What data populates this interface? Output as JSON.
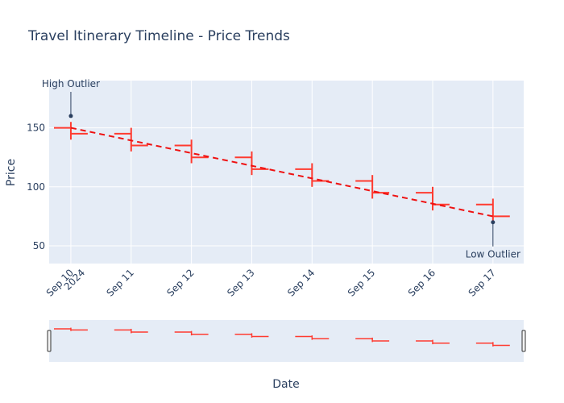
{
  "chart_data": {
    "type": "ohlc",
    "title": "Travel Itinerary Timeline - Price Trends",
    "xlabel": "Date",
    "ylabel": "Price",
    "ylim": [
      35,
      190
    ],
    "y_ticks": [
      50,
      100,
      150
    ],
    "x_ticks": [
      {
        "date": "2024-09-10",
        "label": "Sep 10",
        "sublabel": "2024"
      },
      {
        "date": "2024-09-11",
        "label": "Sep 11"
      },
      {
        "date": "2024-09-12",
        "label": "Sep 12"
      },
      {
        "date": "2024-09-13",
        "label": "Sep 13"
      },
      {
        "date": "2024-09-14",
        "label": "Sep 14"
      },
      {
        "date": "2024-09-15",
        "label": "Sep 15"
      },
      {
        "date": "2024-09-16",
        "label": "Sep 16"
      },
      {
        "date": "2024-09-17",
        "label": "Sep 17"
      }
    ],
    "ohlc": [
      {
        "date": "2024-09-10",
        "open": 150,
        "high": 155,
        "low": 140,
        "close": 145
      },
      {
        "date": "2024-09-11",
        "open": 145,
        "high": 150,
        "low": 130,
        "close": 135
      },
      {
        "date": "2024-09-12",
        "open": 135,
        "high": 140,
        "low": 120,
        "close": 125
      },
      {
        "date": "2024-09-13",
        "open": 125,
        "high": 130,
        "low": 110,
        "close": 115
      },
      {
        "date": "2024-09-14",
        "open": 115,
        "high": 120,
        "low": 100,
        "close": 105
      },
      {
        "date": "2024-09-15",
        "open": 105,
        "high": 110,
        "low": 90,
        "close": 95
      },
      {
        "date": "2024-09-16",
        "open": 95,
        "high": 100,
        "low": 80,
        "close": 85
      },
      {
        "date": "2024-09-17",
        "open": 85,
        "high": 90,
        "low": 70,
        "close": 75
      }
    ],
    "trend_line": {
      "start": {
        "date": "2024-09-10",
        "value": 150
      },
      "end": {
        "date": "2024-09-17",
        "value": 75
      },
      "style": "dashed"
    },
    "annotations": [
      {
        "text": "High Outlier",
        "date": "2024-09-10",
        "value": 160
      },
      {
        "text": "Low Outlier",
        "date": "2024-09-17",
        "value": 70
      }
    ],
    "grid": true,
    "range_slider": true,
    "colors": {
      "candle": "#ff3b30",
      "trend": "#ee1111",
      "plot_bg": "#e5ecf6",
      "grid": "#ffffff",
      "text": "#2a3f5f",
      "marker": "#2a3f5f"
    }
  }
}
